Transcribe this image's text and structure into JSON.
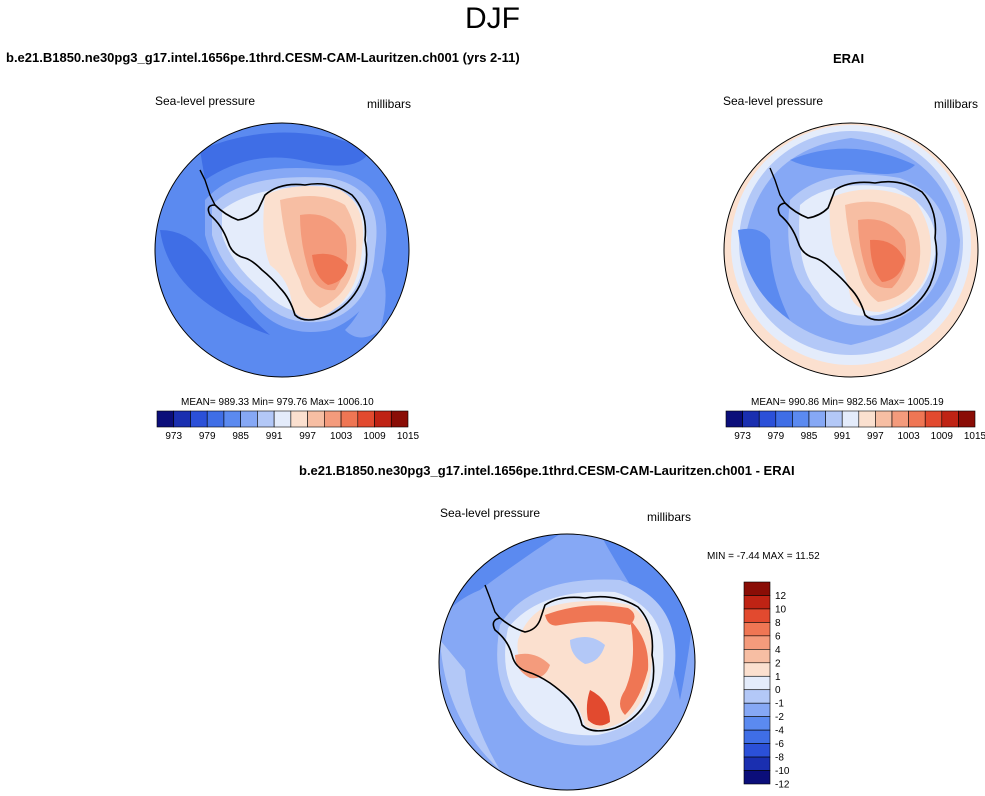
{
  "page": {
    "title": "DJF"
  },
  "panels": [
    {
      "title": "b.e21.B1850.ne30pg3_g17.intel.1656pe.1thrd.CESM-CAM-Lauritzen.ch001 (yrs 2-11)",
      "left_label": "Sea-level pressure",
      "right_label": "millibars",
      "stats": "MEAN= 989.33  Min= 979.76  Max= 1006.10"
    },
    {
      "title": "ERAI",
      "left_label": "Sea-level pressure",
      "right_label": "millibars",
      "stats": "MEAN= 990.86  Min= 982.56  Max= 1005.19"
    },
    {
      "title": "b.e21.B1850.ne30pg3_g17.intel.1656pe.1thrd.CESM-CAM-Lauritzen.ch001 - ERAI",
      "left_label": "Sea-level pressure",
      "right_label": "millibars",
      "stats": "MIN =  -7.44 MAX =  11.52"
    }
  ],
  "colors": {
    "abs_scale": [
      "#0b0e7a",
      "#1a2fb0",
      "#2b50d8",
      "#3f6ee6",
      "#5b8af0",
      "#86a8f5",
      "#b3c8f7",
      "#e4ecfb",
      "#fbe0cf",
      "#f7bea3",
      "#f49b7c",
      "#ef7654",
      "#e24a2f",
      "#bf2314",
      "#8a0d06"
    ],
    "diff_scale": [
      "#0b0e7a",
      "#1a2fb0",
      "#2b50d8",
      "#3f6ee6",
      "#5b8af0",
      "#86a8f5",
      "#b3c8f7",
      "#e4ecfb",
      "#fbe0cf",
      "#f7bea3",
      "#f49b7c",
      "#ef7654",
      "#e24a2f",
      "#bf2314",
      "#8a0d06"
    ]
  },
  "chart_data": [
    {
      "type": "heatmap",
      "projection": "south-polar-stereographic",
      "title": "b.e21.B1850.ne30pg3_g17.intel.1656pe.1thrd.CESM-CAM-Lauritzen.ch001 (yrs 2-11)",
      "variable": "Sea-level pressure",
      "units": "millibars",
      "mean": 989.33,
      "min": 979.76,
      "max": 1006.1,
      "colorbar_ticks": [
        "973",
        "979",
        "985",
        "991",
        "997",
        "1003",
        "1009",
        "1015"
      ],
      "colorbar_levels": [
        973,
        976,
        979,
        982,
        985,
        988,
        991,
        994,
        997,
        1000,
        1003,
        1006,
        1009,
        1012,
        1015
      ]
    },
    {
      "type": "heatmap",
      "projection": "south-polar-stereographic",
      "title": "ERAI",
      "variable": "Sea-level pressure",
      "units": "millibars",
      "mean": 990.86,
      "min": 982.56,
      "max": 1005.19,
      "colorbar_ticks": [
        "973",
        "979",
        "985",
        "991",
        "997",
        "1003",
        "1009",
        "1015"
      ],
      "colorbar_levels": [
        973,
        976,
        979,
        982,
        985,
        988,
        991,
        994,
        997,
        1000,
        1003,
        1006,
        1009,
        1012,
        1015
      ]
    },
    {
      "type": "heatmap",
      "projection": "south-polar-stereographic",
      "title": "b.e21.B1850.ne30pg3_g17.intel.1656pe.1thrd.CESM-CAM-Lauritzen.ch001 - ERAI",
      "variable": "Sea-level pressure",
      "units": "millibars",
      "min": -7.44,
      "max": 11.52,
      "colorbar_ticks": [
        "12",
        "10",
        "8",
        "6",
        "4",
        "2",
        "1",
        "0",
        "-1",
        "-2",
        "-4",
        "-6",
        "-8",
        "-10",
        "-12"
      ]
    }
  ]
}
